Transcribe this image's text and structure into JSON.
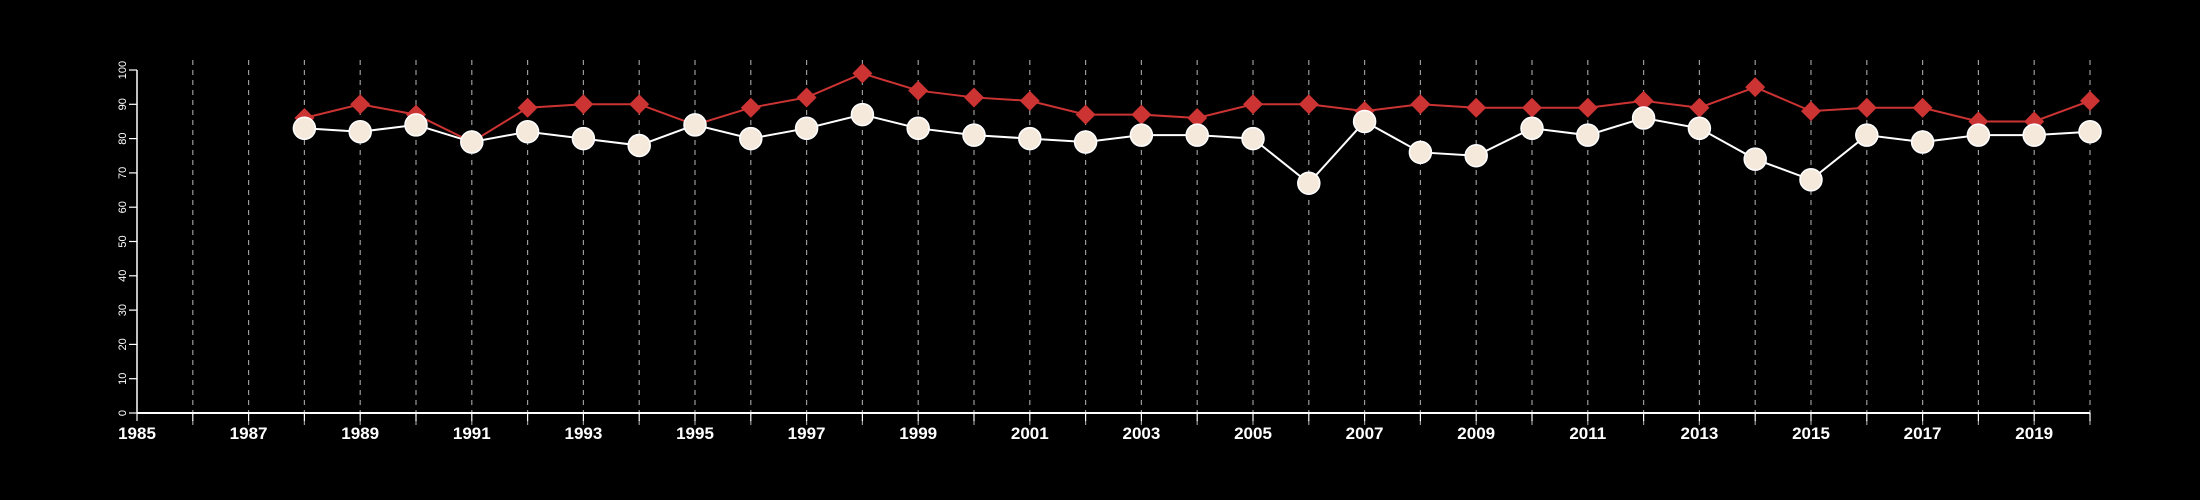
{
  "chart_data": {
    "type": "line",
    "title": "",
    "xlabel": "",
    "ylabel": "",
    "xlim": [
      1985,
      2020
    ],
    "ylim": [
      0,
      100
    ],
    "x_ticks": [
      "1985",
      "1987",
      "1989",
      "1991",
      "1993",
      "1995",
      "1997",
      "1999",
      "2001",
      "2003",
      "2005",
      "2007",
      "2009",
      "2011",
      "2013",
      "2015",
      "2017",
      "2019"
    ],
    "y_ticks": [
      "0",
      "10",
      "20",
      "30",
      "40",
      "50",
      "60",
      "70",
      "80",
      "90",
      "100"
    ],
    "grid": {
      "vertical_dashed_each_year": true,
      "horizontal": false
    },
    "legend": "none",
    "x": [
      1988,
      1989,
      1990,
      1991,
      1992,
      1993,
      1994,
      1995,
      1996,
      1997,
      1998,
      1999,
      2000,
      2001,
      2002,
      2003,
      2004,
      2005,
      2006,
      2007,
      2008,
      2009,
      2010,
      2011,
      2012,
      2013,
      2014,
      2015,
      2016,
      2017,
      2018,
      2019,
      2020
    ],
    "series": [
      {
        "marker": "diamond",
        "color": "#cc3333",
        "values": [
          86,
          90,
          87,
          79,
          89,
          90,
          90,
          84,
          89,
          92,
          99,
          94,
          92,
          91,
          87,
          87,
          86,
          90,
          90,
          88,
          90,
          89,
          89,
          89,
          91,
          89,
          95,
          88,
          89,
          89,
          85,
          85,
          91
        ]
      },
      {
        "marker": "circle",
        "color": "#f5e9dc",
        "line_color": "#ffffff",
        "values": [
          83,
          82,
          84,
          79,
          82,
          80,
          78,
          84,
          80,
          83,
          87,
          83,
          81,
          80,
          79,
          81,
          81,
          80,
          67,
          85,
          76,
          75,
          83,
          81,
          86,
          83,
          74,
          68,
          81,
          79,
          81,
          81,
          82
        ]
      }
    ]
  }
}
